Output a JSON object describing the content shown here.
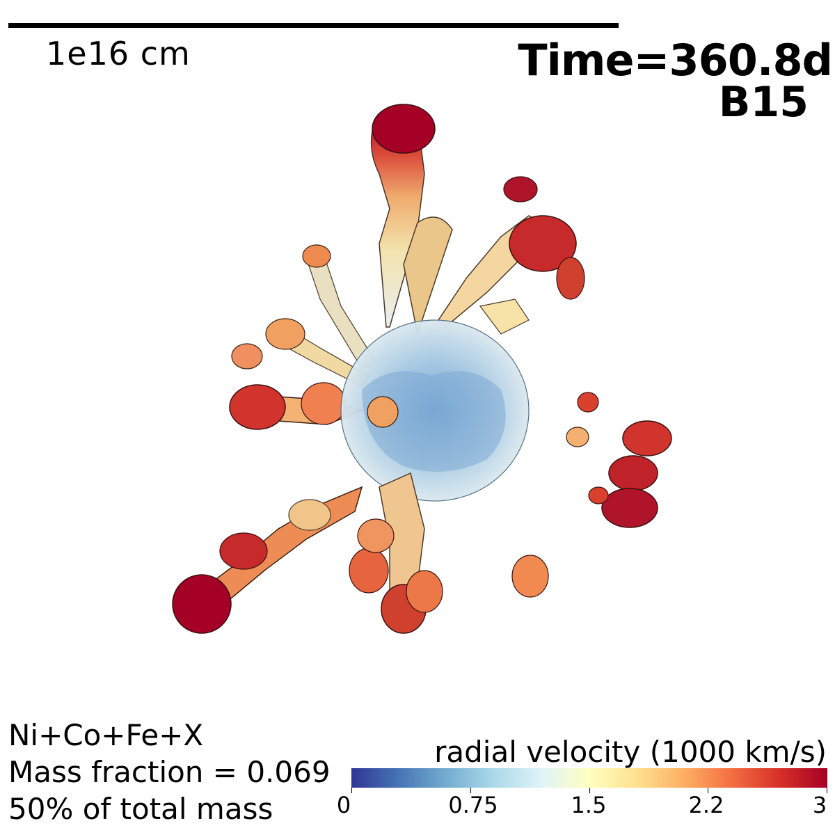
{
  "scale_bar": {
    "label": "1e16 cm"
  },
  "annotations": {
    "time": "Time=360.8d",
    "model": "B15"
  },
  "info": {
    "line1": "Ni+Co+Fe+X",
    "line2": "Mass fraction = 0.069",
    "line3": "50% of total mass"
  },
  "colorbar": {
    "title": "radial velocity (1000 km/s)",
    "ticks": [
      "0",
      "0.75",
      "1.5",
      "2.2",
      "3"
    ],
    "colormap": [
      "#313695",
      "#4575b4",
      "#74add1",
      "#abd9e9",
      "#e0f3f8",
      "#ffffbf",
      "#fee090",
      "#fdae61",
      "#f46d43",
      "#d73027",
      "#a50026"
    ]
  }
}
